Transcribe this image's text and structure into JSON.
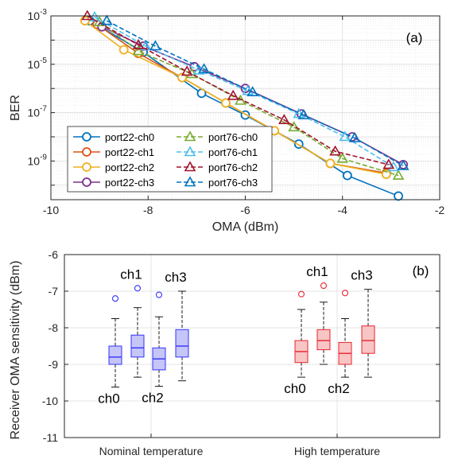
{
  "chart_data": [
    {
      "type": "line",
      "panel_label": "(a)",
      "xlabel": "OMA (dBm)",
      "ylabel": "BER",
      "xlim": [
        -10,
        -2
      ],
      "ylim_log10": [
        -10.6,
        -3
      ],
      "y_scale": "log",
      "x_ticks": [
        -10,
        -8,
        -6,
        -4,
        -2
      ],
      "x_tick_labels": [
        "-10",
        "-8",
        "-6",
        "-4",
        "-2"
      ],
      "y_ticks_log10": [
        -3,
        -5,
        -7,
        -9
      ],
      "y_tick_labels": [
        {
          "base": "10",
          "exp": "-3"
        },
        {
          "base": "10",
          "exp": "-5"
        },
        {
          "base": "10",
          "exp": "-7"
        },
        {
          "base": "10",
          "exp": "-9"
        }
      ],
      "grid": true,
      "minor_grid": true,
      "legend_position": "bottom-left",
      "legend_columns": 2,
      "series": [
        {
          "name": "port22-ch0",
          "color": "#0072BD",
          "marker": "circle",
          "dash": "solid",
          "x": [
            -9.2,
            -8.1,
            -6.9,
            -6.0,
            -4.9,
            -3.9,
            -2.85
          ],
          "y_log10": [
            -3.2,
            -4.5,
            -6.2,
            -7.1,
            -8.3,
            -9.6,
            -10.45
          ]
        },
        {
          "name": "port22-ch1",
          "color": "#D95319",
          "marker": "circle",
          "dash": "solid",
          "x": [
            -9.05,
            -8.2,
            -7.3,
            -6.4,
            -5.4,
            -4.25,
            -3.1
          ],
          "y_log10": [
            -3.35,
            -4.55,
            -5.55,
            -6.6,
            -7.75,
            -9.1,
            -9.5
          ]
        },
        {
          "name": "port22-ch2",
          "color": "#EDB120",
          "marker": "circle",
          "dash": "solid",
          "x": [
            -9.3,
            -8.5,
            -7.3,
            -6.4,
            -5.4,
            -4.25,
            -3.1
          ],
          "y_log10": [
            -3.2,
            -4.4,
            -5.55,
            -6.6,
            -7.75,
            -9.1,
            -9.55
          ]
        },
        {
          "name": "port22-ch3",
          "color": "#7E2F8E",
          "marker": "circle",
          "dash": "solid",
          "x": [
            -8.95,
            -8.1,
            -7.05,
            -6.0,
            -4.85,
            -3.8,
            -2.75
          ],
          "y_log10": [
            -3.45,
            -4.25,
            -5.1,
            -6.0,
            -7.05,
            -8.0,
            -9.15
          ]
        },
        {
          "name": "port76-ch0",
          "color": "#77AC30",
          "marker": "triangle",
          "dash": "dashed",
          "x": [
            -9.0,
            -8.2,
            -7.1,
            -6.1,
            -5.0,
            -4.0,
            -2.85
          ],
          "y_log10": [
            -3.25,
            -4.45,
            -5.4,
            -6.5,
            -7.6,
            -8.9,
            -9.6
          ]
        },
        {
          "name": "port76-ch1",
          "color": "#4DBEEE",
          "marker": "triangle",
          "dash": "dashed",
          "x": [
            -9.1,
            -8.05,
            -6.95,
            -5.95,
            -4.9,
            -3.95,
            -2.95
          ],
          "y_log10": [
            -3.05,
            -4.25,
            -5.25,
            -6.1,
            -7.05,
            -8.0,
            -9.25
          ]
        },
        {
          "name": "port76-ch2",
          "color": "#A2142F",
          "marker": "triangle",
          "dash": "dashed",
          "x": [
            -9.25,
            -8.2,
            -7.2,
            -6.25,
            -5.2,
            -4.15,
            -3.05
          ],
          "y_log10": [
            -3.0,
            -4.2,
            -5.3,
            -6.3,
            -7.3,
            -8.6,
            -9.15
          ]
        },
        {
          "name": "port76-ch3",
          "color": "#0072BD",
          "marker": "triangle",
          "dash": "dashed",
          "x": [
            -8.85,
            -7.85,
            -6.85,
            -5.85,
            -4.8,
            -3.75,
            -2.75
          ],
          "y_log10": [
            -3.2,
            -4.25,
            -5.2,
            -6.15,
            -7.1,
            -8.05,
            -9.2
          ]
        }
      ]
    },
    {
      "type": "box",
      "panel_label": "(b)",
      "xlabel": "",
      "ylabel": "Receiver OMA sensitivity (dBm)",
      "ylim": [
        -11,
        -6
      ],
      "y_ticks": [
        -11,
        -10,
        -9,
        -8,
        -7,
        -6
      ],
      "y_tick_labels": [
        "-11",
        "-10",
        "-9",
        "-8",
        "-7",
        "-6"
      ],
      "categories": [
        "Nominal temperature",
        "High temperature"
      ],
      "grid": true,
      "groups": [
        {
          "category": "Nominal temperature",
          "color": "#3333FF",
          "fill": "#C5C5F7",
          "boxes": [
            {
              "label": "ch0",
              "label_above": false,
              "min": -9.62,
              "q1": -9.0,
              "median": -8.8,
              "q3": -8.5,
              "max": -7.75,
              "outliers": [
                -7.2
              ]
            },
            {
              "label": "ch1",
              "label_above": true,
              "min": -9.35,
              "q1": -8.8,
              "median": -8.55,
              "q3": -8.2,
              "max": -7.45,
              "outliers": [
                -6.92
              ]
            },
            {
              "label": "ch2",
              "label_above": false,
              "min": -9.6,
              "q1": -9.15,
              "median": -8.85,
              "q3": -8.55,
              "max": -7.7,
              "outliers": [
                -7.1
              ]
            },
            {
              "label": "ch3",
              "label_above": true,
              "min": -9.45,
              "q1": -8.8,
              "median": -8.5,
              "q3": -8.05,
              "max": -7.0,
              "outliers": []
            }
          ]
        },
        {
          "category": "High temperature",
          "color": "#E8242E",
          "fill": "#F8C5C5",
          "boxes": [
            {
              "label": "ch0",
              "label_above": false,
              "min": -9.35,
              "q1": -8.95,
              "median": -8.65,
              "q3": -8.35,
              "max": -7.5,
              "outliers": [
                -7.08
              ]
            },
            {
              "label": "ch1",
              "label_above": true,
              "min": -9.0,
              "q1": -8.6,
              "median": -8.35,
              "q3": -8.05,
              "max": -7.3,
              "outliers": [
                -6.85
              ]
            },
            {
              "label": "ch2",
              "label_above": false,
              "min": -9.35,
              "q1": -9.0,
              "median": -8.7,
              "q3": -8.4,
              "max": -7.75,
              "outliers": [
                -7.05
              ]
            },
            {
              "label": "ch3",
              "label_above": true,
              "min": -9.35,
              "q1": -8.7,
              "median": -8.35,
              "q3": -7.95,
              "max": -6.95,
              "outliers": []
            }
          ]
        }
      ]
    }
  ]
}
